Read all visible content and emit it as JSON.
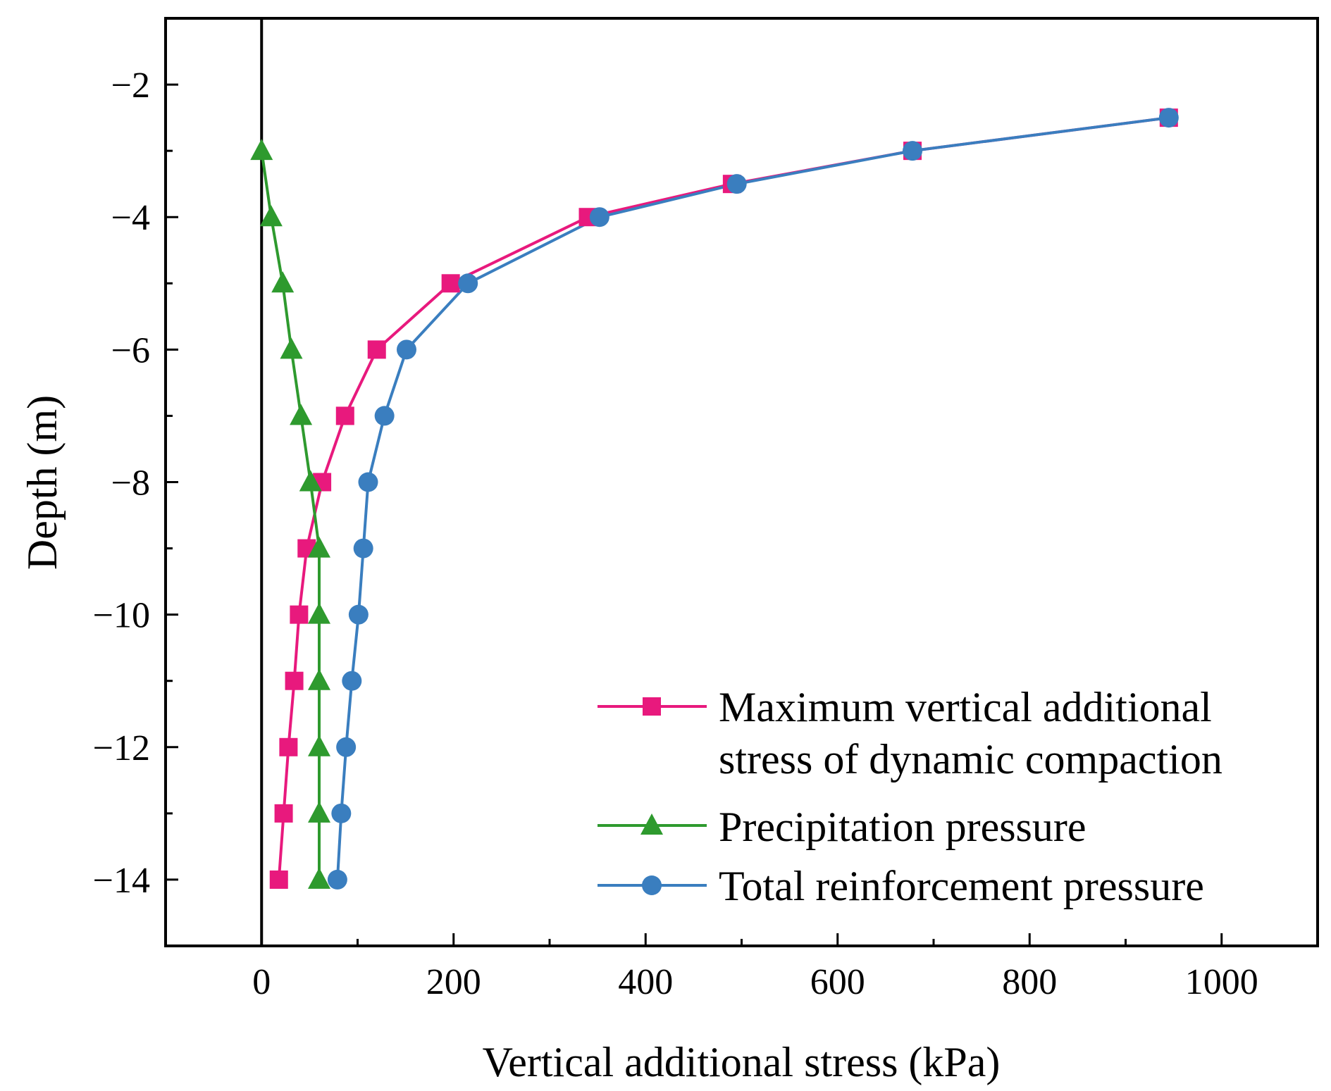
{
  "chart_data": {
    "type": "line",
    "xlabel": "Vertical additional stress (kPa)",
    "ylabel": "Depth (m)",
    "xlim": [
      -100,
      1100
    ],
    "ylim": [
      -15,
      -1
    ],
    "xticks": [
      0,
      200,
      400,
      600,
      800,
      1000
    ],
    "xtick_labels": [
      "0",
      "200",
      "400",
      "600",
      "800",
      "1000"
    ],
    "yticks": [
      -2,
      -4,
      -6,
      -8,
      -10,
      -12,
      -14
    ],
    "ytick_labels": [
      "−2",
      "−4",
      "−6",
      "−8",
      "−10",
      "−12",
      "−14"
    ],
    "zero_line_x": 0,
    "grid": false,
    "legend_position": "bottom-right",
    "series": [
      {
        "name_lines": [
          "Maximum vertical additional",
          "stress of dynamic compaction"
        ],
        "name": "Maximum vertical additional stress of dynamic compaction",
        "color": "#e8197d",
        "marker": "square",
        "points": [
          [
            945,
            -2.5
          ],
          [
            678,
            -3
          ],
          [
            490,
            -3.5
          ],
          [
            340,
            -4
          ],
          [
            197,
            -5
          ],
          [
            120,
            -6
          ],
          [
            87,
            -7
          ],
          [
            63,
            -8
          ],
          [
            47,
            -9
          ],
          [
            39,
            -10
          ],
          [
            34,
            -11
          ],
          [
            28,
            -12
          ],
          [
            23,
            -13
          ],
          [
            18,
            -14
          ]
        ]
      },
      {
        "name_lines": [
          "Precipitation pressure"
        ],
        "name": "Precipitation pressure",
        "color": "#2e9a2e",
        "marker": "triangle",
        "points": [
          [
            0,
            -3
          ],
          [
            10,
            -4
          ],
          [
            22,
            -5
          ],
          [
            31,
            -6
          ],
          [
            41,
            -7
          ],
          [
            51,
            -8
          ],
          [
            60,
            -9
          ],
          [
            60,
            -10
          ],
          [
            60,
            -11
          ],
          [
            60,
            -12
          ],
          [
            60,
            -13
          ],
          [
            60,
            -14
          ]
        ]
      },
      {
        "name_lines": [
          "Total reinforcement pressure"
        ],
        "name": "Total reinforcement pressure",
        "color": "#3a7ebf",
        "marker": "circle",
        "points": [
          [
            945,
            -2.5
          ],
          [
            678,
            -3
          ],
          [
            495,
            -3.5
          ],
          [
            352,
            -4
          ],
          [
            215,
            -5
          ],
          [
            151,
            -6
          ],
          [
            128,
            -7
          ],
          [
            111,
            -8
          ],
          [
            106,
            -9
          ],
          [
            101,
            -10
          ],
          [
            94,
            -11
          ],
          [
            88,
            -12
          ],
          [
            83,
            -13
          ],
          [
            79,
            -14
          ]
        ]
      }
    ]
  }
}
